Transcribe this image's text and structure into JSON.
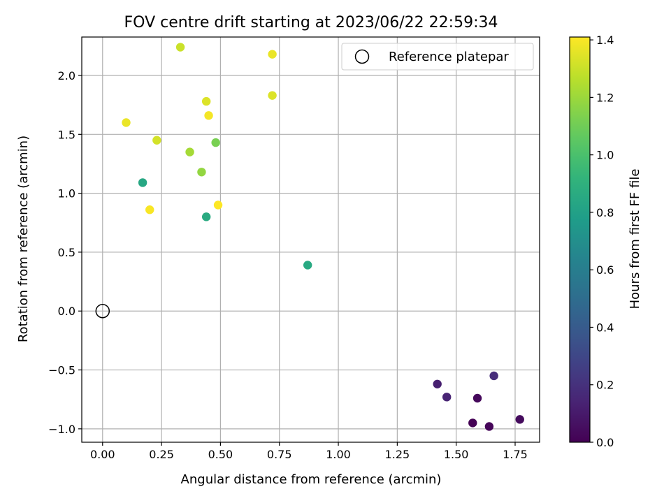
{
  "chart_data": {
    "type": "scatter",
    "title": "FOV centre drift starting at 2023/06/22 22:59:34",
    "xlabel": "Angular distance from reference (arcmin)",
    "ylabel": "Rotation from reference (arcmin)",
    "xlim": [
      -0.0883,
      1.8538
    ],
    "ylim": [
      -1.1136,
      2.3262
    ],
    "xticks": [
      0.0,
      0.25,
      0.5,
      0.75,
      1.0,
      1.25,
      1.5,
      1.75
    ],
    "xtick_labels": [
      "0.00",
      "0.25",
      "0.50",
      "0.75",
      "1.00",
      "1.25",
      "1.50",
      "1.75"
    ],
    "yticks": [
      -1.0,
      -0.5,
      0.0,
      0.5,
      1.0,
      1.5,
      2.0
    ],
    "ytick_labels": [
      "−1.0",
      "−0.5",
      "0.0",
      "0.5",
      "1.0",
      "1.5",
      "2.0"
    ],
    "grid": true,
    "legend": {
      "placement": "top-right",
      "entries": [
        "Reference platepar"
      ]
    },
    "reference_point": {
      "x": 0.0,
      "y": 0.0
    },
    "colorbar": {
      "label": "Hours from first FF file",
      "colormap": "viridis",
      "range": [
        0.0,
        1.41
      ],
      "ticks": [
        0.0,
        0.2,
        0.4,
        0.6,
        0.8,
        1.0,
        1.2,
        1.4
      ],
      "tick_labels": [
        "0.0",
        "0.2",
        "0.4",
        "0.6",
        "0.8",
        "1.0",
        "1.2",
        "1.4"
      ]
    },
    "points": [
      {
        "x": 1.57,
        "y": -0.95,
        "c": 0.0
      },
      {
        "x": 1.64,
        "y": -0.98,
        "c": 0.02
      },
      {
        "x": 1.77,
        "y": -0.92,
        "c": 0.04
      },
      {
        "x": 1.59,
        "y": -0.74,
        "c": 0.03
      },
      {
        "x": 1.42,
        "y": -0.62,
        "c": 0.12
      },
      {
        "x": 1.46,
        "y": -0.73,
        "c": 0.14
      },
      {
        "x": 1.66,
        "y": -0.55,
        "c": 0.18
      },
      {
        "x": 0.87,
        "y": 0.39,
        "c": 0.85
      },
      {
        "x": 0.44,
        "y": 0.8,
        "c": 0.86
      },
      {
        "x": 0.17,
        "y": 1.09,
        "c": 0.84
      },
      {
        "x": 0.48,
        "y": 1.43,
        "c": 1.12
      },
      {
        "x": 0.42,
        "y": 1.18,
        "c": 1.18
      },
      {
        "x": 0.37,
        "y": 1.35,
        "c": 1.22
      },
      {
        "x": 0.33,
        "y": 2.24,
        "c": 1.3
      },
      {
        "x": 0.23,
        "y": 1.45,
        "c": 1.32
      },
      {
        "x": 0.72,
        "y": 1.83,
        "c": 1.34
      },
      {
        "x": 0.44,
        "y": 1.78,
        "c": 1.34
      },
      {
        "x": 0.72,
        "y": 2.18,
        "c": 1.37
      },
      {
        "x": 0.1,
        "y": 1.6,
        "c": 1.37
      },
      {
        "x": 0.45,
        "y": 1.66,
        "c": 1.39
      },
      {
        "x": 0.2,
        "y": 0.86,
        "c": 1.4
      },
      {
        "x": 0.49,
        "y": 0.9,
        "c": 1.41
      }
    ]
  }
}
